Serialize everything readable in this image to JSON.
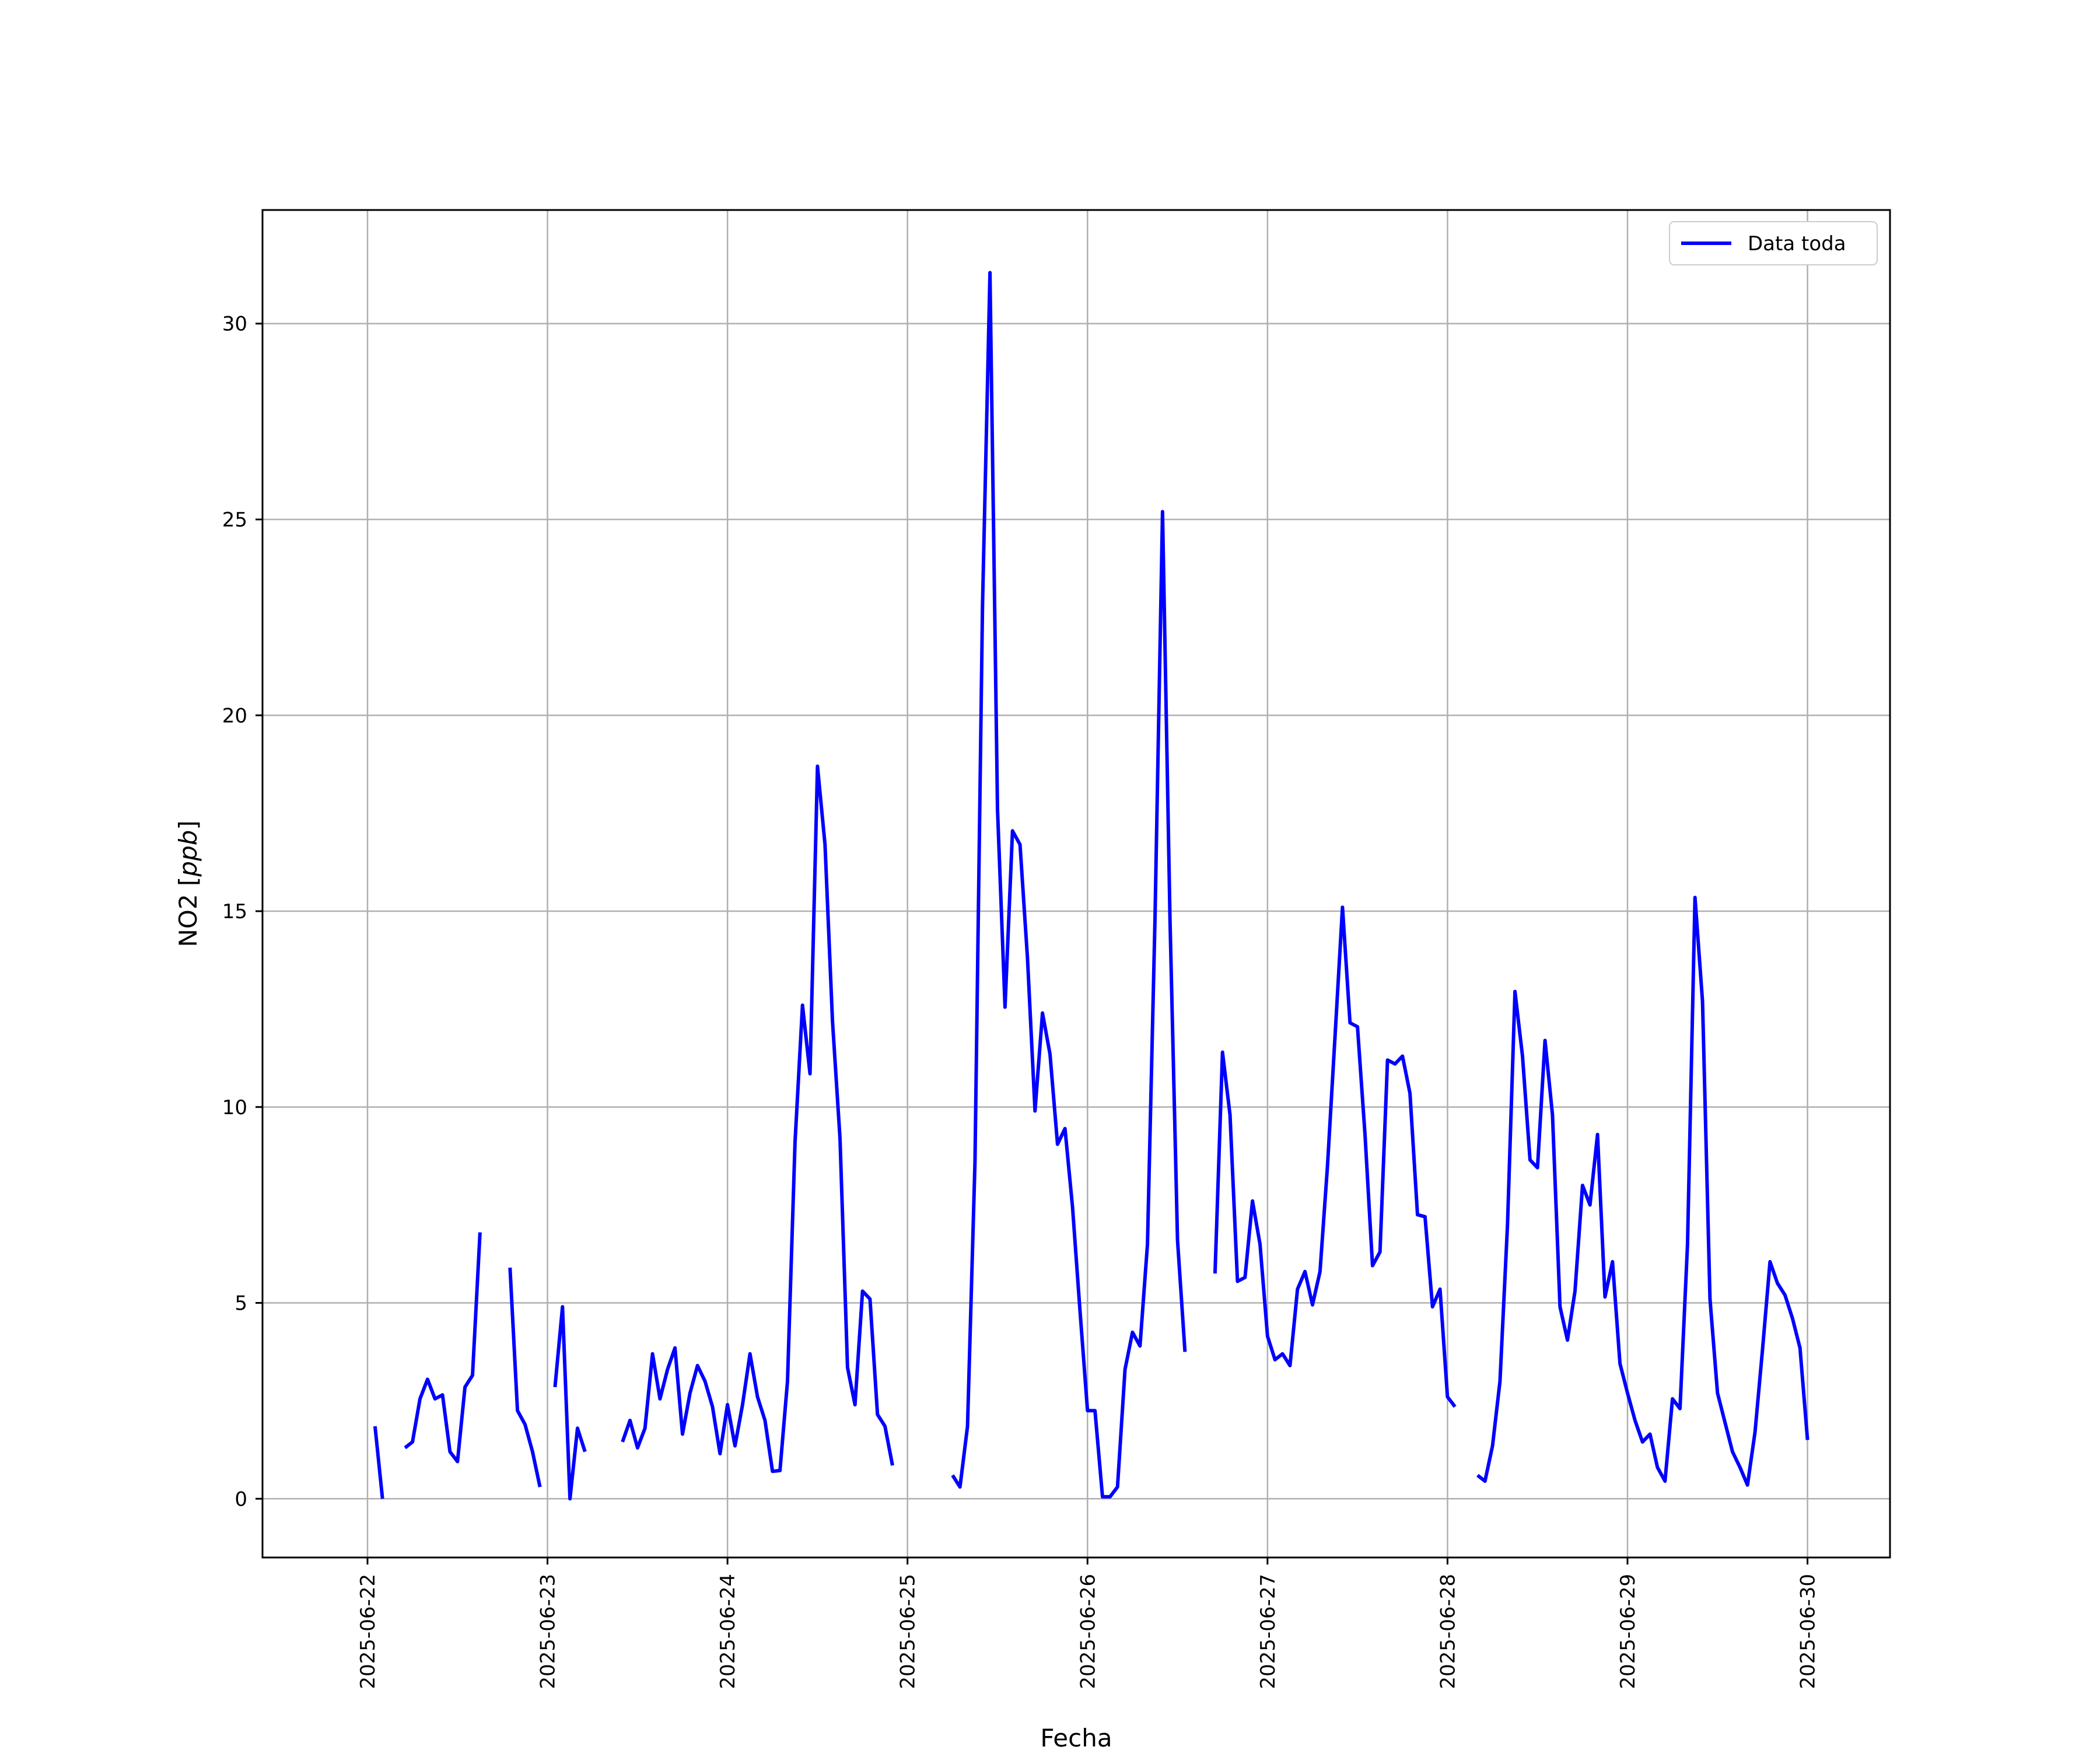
{
  "chart_data": {
    "type": "line",
    "title": "",
    "xlabel": "Fecha",
    "ylabel": "NO2 [ppb]",
    "ylabel_parts": {
      "main": "NO2 [",
      "italic": "ppb",
      "end": "]"
    },
    "xlim": [
      "2025-06-21 10:00",
      "2025-06-30 11:00"
    ],
    "ylim": [
      -1.5,
      32.9
    ],
    "xticks": [
      "2025-06-22",
      "2025-06-23",
      "2025-06-24",
      "2025-06-25",
      "2025-06-26",
      "2025-06-27",
      "2025-06-28",
      "2025-06-29",
      "2025-06-30"
    ],
    "yticks": [
      0,
      5,
      10,
      15,
      20,
      25,
      30
    ],
    "grid": true,
    "legend_position": "top-right",
    "colors": {
      "line": "#0000ff",
      "grid": "#b0b0b0",
      "axes": "#000000"
    },
    "series": [
      {
        "name": "Data toda",
        "points": [
          [
            "2025-06-22 01:00",
            1.85
          ],
          [
            "2025-06-22 02:00",
            0.0
          ],
          [
            "2025-06-22 03:00",
            null
          ],
          [
            "2025-06-22 05:00",
            1.3
          ],
          [
            "2025-06-22 06:00",
            1.45
          ],
          [
            "2025-06-22 07:00",
            2.55
          ],
          [
            "2025-06-22 08:00",
            3.05
          ],
          [
            "2025-06-22 09:00",
            2.55
          ],
          [
            "2025-06-22 10:00",
            2.65
          ],
          [
            "2025-06-22 11:00",
            1.2
          ],
          [
            "2025-06-22 12:00",
            0.95
          ],
          [
            "2025-06-22 13:00",
            2.85
          ],
          [
            "2025-06-22 14:00",
            3.15
          ],
          [
            "2025-06-22 15:00",
            6.8
          ],
          [
            "2025-06-22 16:00",
            null
          ],
          [
            "2025-06-22 19:00",
            5.9
          ],
          [
            "2025-06-22 20:00",
            2.25
          ],
          [
            "2025-06-22 21:00",
            1.9
          ],
          [
            "2025-06-22 22:00",
            1.2
          ],
          [
            "2025-06-22 23:00",
            0.3
          ],
          [
            "2025-06-23 00:00",
            null
          ],
          [
            "2025-06-23 01:00",
            2.85
          ],
          [
            "2025-06-23 02:00",
            4.9
          ],
          [
            "2025-06-23 03:00",
            0.0
          ],
          [
            "2025-06-23 04:00",
            1.8
          ],
          [
            "2025-06-23 05:00",
            1.2
          ],
          [
            "2025-06-23 06:00",
            null
          ],
          [
            "2025-06-23 10:00",
            1.45
          ],
          [
            "2025-06-23 11:00",
            2.0
          ],
          [
            "2025-06-23 12:00",
            1.3
          ],
          [
            "2025-06-23 13:00",
            1.8
          ],
          [
            "2025-06-23 14:00",
            3.7
          ],
          [
            "2025-06-23 15:00",
            2.55
          ],
          [
            "2025-06-23 16:00",
            3.3
          ],
          [
            "2025-06-23 17:00",
            3.85
          ],
          [
            "2025-06-23 18:00",
            1.65
          ],
          [
            "2025-06-23 19:00",
            2.7
          ],
          [
            "2025-06-23 20:00",
            3.4
          ],
          [
            "2025-06-23 21:00",
            3.0
          ],
          [
            "2025-06-23 22:00",
            2.35
          ],
          [
            "2025-06-23 23:00",
            1.15
          ],
          [
            "2025-06-24 00:00",
            2.4
          ],
          [
            "2025-06-24 01:00",
            1.35
          ],
          [
            "2025-06-24 02:00",
            2.4
          ],
          [
            "2025-06-24 03:00",
            3.7
          ],
          [
            "2025-06-24 04:00",
            2.6
          ],
          [
            "2025-06-24 05:00",
            2.0
          ],
          [
            "2025-06-24 06:00",
            0.7
          ],
          [
            "2025-06-24 07:00",
            0.72
          ],
          [
            "2025-06-24 08:00",
            3.0
          ],
          [
            "2025-06-24 09:00",
            9.1
          ],
          [
            "2025-06-24 10:00",
            12.6
          ],
          [
            "2025-06-24 11:00",
            10.85
          ],
          [
            "2025-06-24 12:00",
            18.7
          ],
          [
            "2025-06-24 13:00",
            16.7
          ],
          [
            "2025-06-24 14:00",
            12.2
          ],
          [
            "2025-06-24 15:00",
            9.2
          ],
          [
            "2025-06-24 16:00",
            3.35
          ],
          [
            "2025-06-24 17:00",
            2.4
          ],
          [
            "2025-06-24 18:00",
            5.3
          ],
          [
            "2025-06-24 19:00",
            5.1
          ],
          [
            "2025-06-24 20:00",
            2.15
          ],
          [
            "2025-06-24 21:00",
            1.85
          ],
          [
            "2025-06-24 22:00",
            0.85
          ],
          [
            "2025-06-24 23:00",
            null
          ],
          [
            "2025-06-25 06:00",
            0.6
          ],
          [
            "2025-06-25 07:00",
            0.3
          ],
          [
            "2025-06-25 08:00",
            1.85
          ],
          [
            "2025-06-25 09:00",
            8.6
          ],
          [
            "2025-06-25 10:00",
            22.8
          ],
          [
            "2025-06-25 11:00",
            31.3
          ],
          [
            "2025-06-25 12:00",
            17.6
          ],
          [
            "2025-06-25 13:00",
            12.55
          ],
          [
            "2025-06-25 14:00",
            17.05
          ],
          [
            "2025-06-25 15:00",
            16.7
          ],
          [
            "2025-06-25 16:00",
            13.8
          ],
          [
            "2025-06-25 17:00",
            9.9
          ],
          [
            "2025-06-25 18:00",
            12.4
          ],
          [
            "2025-06-25 19:00",
            11.35
          ],
          [
            "2025-06-25 20:00",
            9.05
          ],
          [
            "2025-06-25 21:00",
            9.45
          ],
          [
            "2025-06-25 22:00",
            7.45
          ],
          [
            "2025-06-25 23:00",
            4.8
          ],
          [
            "2025-06-26 00:00",
            2.25
          ],
          [
            "2025-06-26 01:00",
            2.25
          ],
          [
            "2025-06-26 02:00",
            0.05
          ],
          [
            "2025-06-26 03:00",
            0.05
          ],
          [
            "2025-06-26 04:00",
            0.3
          ],
          [
            "2025-06-26 05:00",
            3.3
          ],
          [
            "2025-06-26 06:00",
            4.25
          ],
          [
            "2025-06-26 07:00",
            3.9
          ],
          [
            "2025-06-26 08:00",
            6.5
          ],
          [
            "2025-06-26 09:00",
            14.8
          ],
          [
            "2025-06-26 10:00",
            25.2
          ],
          [
            "2025-06-26 11:00",
            14.8
          ],
          [
            "2025-06-26 12:00",
            6.6
          ],
          [
            "2025-06-26 13:00",
            3.75
          ],
          [
            "2025-06-26 14:00",
            null
          ],
          [
            "2025-06-26 17:00",
            5.75
          ],
          [
            "2025-06-26 18:00",
            11.4
          ],
          [
            "2025-06-26 19:00",
            9.8
          ],
          [
            "2025-06-26 20:00",
            5.55
          ],
          [
            "2025-06-26 21:00",
            5.65
          ],
          [
            "2025-06-26 22:00",
            7.6
          ],
          [
            "2025-06-26 23:00",
            6.5
          ],
          [
            "2025-06-27 00:00",
            4.15
          ],
          [
            "2025-06-27 01:00",
            3.55
          ],
          [
            "2025-06-27 02:00",
            3.7
          ],
          [
            "2025-06-27 03:00",
            3.4
          ],
          [
            "2025-06-27 04:00",
            5.35
          ],
          [
            "2025-06-27 05:00",
            5.8
          ],
          [
            "2025-06-27 06:00",
            4.95
          ],
          [
            "2025-06-27 07:00",
            5.8
          ],
          [
            "2025-06-27 08:00",
            8.5
          ],
          [
            "2025-06-27 09:00",
            11.8
          ],
          [
            "2025-06-27 10:00",
            15.1
          ],
          [
            "2025-06-27 11:00",
            12.15
          ],
          [
            "2025-06-27 12:00",
            12.05
          ],
          [
            "2025-06-27 13:00",
            9.3
          ],
          [
            "2025-06-27 14:00",
            5.95
          ],
          [
            "2025-06-27 15:00",
            6.3
          ],
          [
            "2025-06-27 16:00",
            11.2
          ],
          [
            "2025-06-27 17:00",
            11.1
          ],
          [
            "2025-06-27 18:00",
            11.3
          ],
          [
            "2025-06-27 19:00",
            10.35
          ],
          [
            "2025-06-27 20:00",
            7.25
          ],
          [
            "2025-06-27 21:00",
            7.2
          ],
          [
            "2025-06-27 22:00",
            4.9
          ],
          [
            "2025-06-27 23:00",
            5.35
          ],
          [
            "2025-06-28 00:00",
            2.6
          ],
          [
            "2025-06-28 01:00",
            2.35
          ],
          [
            "2025-06-28 02:00",
            null
          ],
          [
            "2025-06-28 04:00",
            0.6
          ],
          [
            "2025-06-28 05:00",
            0.45
          ],
          [
            "2025-06-28 06:00",
            1.35
          ],
          [
            "2025-06-28 07:00",
            3.0
          ],
          [
            "2025-06-28 08:00",
            7.0
          ],
          [
            "2025-06-28 09:00",
            12.95
          ],
          [
            "2025-06-28 10:00",
            11.3
          ],
          [
            "2025-06-28 11:00",
            8.65
          ],
          [
            "2025-06-28 12:00",
            8.45
          ],
          [
            "2025-06-28 13:00",
            11.7
          ],
          [
            "2025-06-28 14:00",
            9.8
          ],
          [
            "2025-06-28 15:00",
            4.9
          ],
          [
            "2025-06-28 16:00",
            4.05
          ],
          [
            "2025-06-28 17:00",
            5.3
          ],
          [
            "2025-06-28 18:00",
            8.0
          ],
          [
            "2025-06-28 19:00",
            7.5
          ],
          [
            "2025-06-28 20:00",
            9.3
          ],
          [
            "2025-06-28 21:00",
            5.15
          ],
          [
            "2025-06-28 22:00",
            6.05
          ],
          [
            "2025-06-28 23:00",
            3.45
          ],
          [
            "2025-06-29 00:00",
            2.7
          ],
          [
            "2025-06-29 01:00",
            2.0
          ],
          [
            "2025-06-29 02:00",
            1.45
          ],
          [
            "2025-06-29 03:00",
            1.65
          ],
          [
            "2025-06-29 04:00",
            0.8
          ],
          [
            "2025-06-29 05:00",
            0.45
          ],
          [
            "2025-06-29 06:00",
            2.55
          ],
          [
            "2025-06-29 07:00",
            2.3
          ],
          [
            "2025-06-29 08:00",
            6.5
          ],
          [
            "2025-06-29 09:00",
            15.35
          ],
          [
            "2025-06-29 10:00",
            12.7
          ],
          [
            "2025-06-29 11:00",
            5.1
          ],
          [
            "2025-06-29 12:00",
            2.7
          ],
          [
            "2025-06-29 13:00",
            1.95
          ],
          [
            "2025-06-29 14:00",
            1.2
          ],
          [
            "2025-06-29 15:00",
            0.8
          ],
          [
            "2025-06-29 16:00",
            0.35
          ],
          [
            "2025-06-29 17:00",
            1.7
          ],
          [
            "2025-06-29 18:00",
            3.8
          ],
          [
            "2025-06-29 19:00",
            6.05
          ],
          [
            "2025-06-29 20:00",
            5.5
          ],
          [
            "2025-06-29 21:00",
            5.2
          ],
          [
            "2025-06-29 22:00",
            4.6
          ],
          [
            "2025-06-29 23:00",
            3.85
          ],
          [
            "2025-06-30 00:00",
            1.5
          ]
        ]
      }
    ]
  }
}
